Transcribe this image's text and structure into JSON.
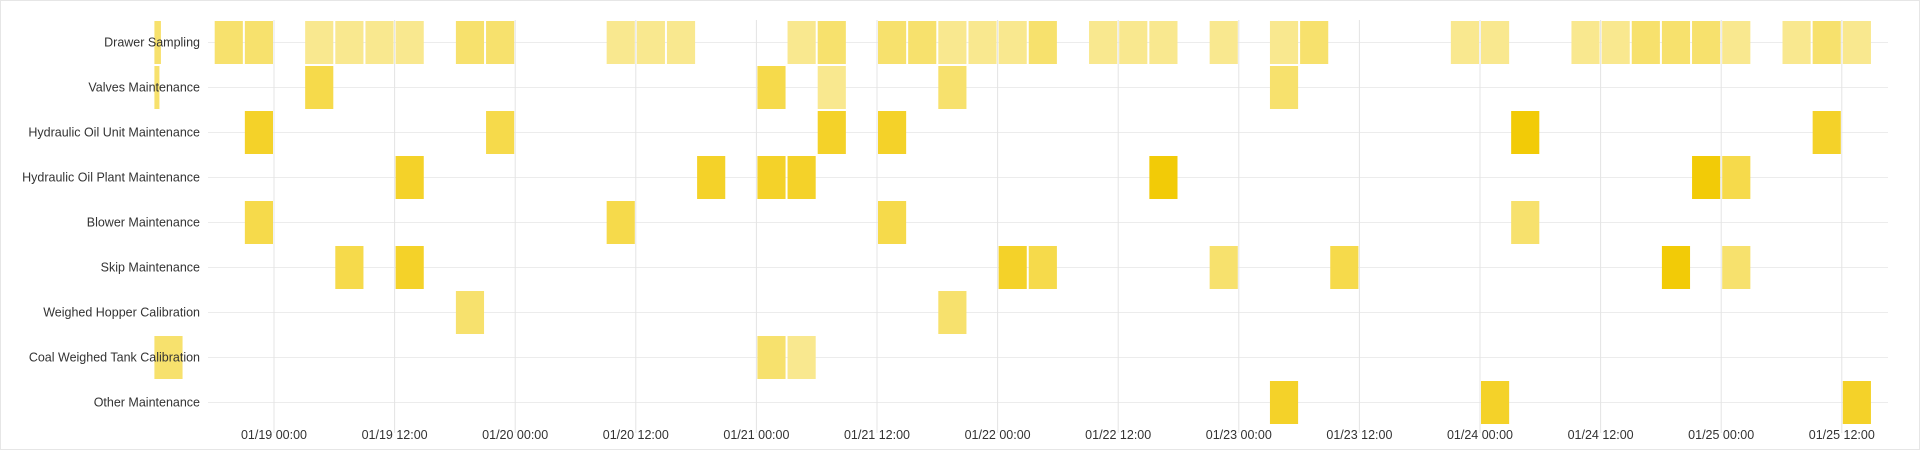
{
  "chart_data": {
    "type": "heatmap",
    "title": "",
    "xlabel": "",
    "ylabel": "",
    "bucket_hours": 3,
    "x_range": [
      "01/18 12:00",
      "01/25 18:00"
    ],
    "grid": true,
    "legend": "none",
    "color_scale": [
      "#f9e88f",
      "#f2cb07"
    ],
    "value_range": [
      1,
      5
    ],
    "rows": [
      "Drawer Sampling",
      "Valves Maintenance",
      "Hydraulic Oil Unit Maintenance",
      "Hydraulic Oil Plant Maintenance",
      "Blower Maintenance",
      "Skip Maintenance",
      "Weighed Hopper Calibration",
      "Coal Weighed Tank Calibration",
      "Other Maintenance"
    ],
    "x_ticks": [
      "01/19 00:00",
      "01/19 12:00",
      "01/20 00:00",
      "01/20 12:00",
      "01/21 00:00",
      "01/21 12:00",
      "01/22 00:00",
      "01/22 12:00",
      "01/23 00:00",
      "01/23 12:00",
      "01/24 00:00",
      "01/24 12:00",
      "01/25 00:00",
      "01/25 12:00"
    ],
    "cells": [
      {
        "row": "Drawer Sampling",
        "start": "01/18 18:00",
        "value": 2
      },
      {
        "row": "Drawer Sampling",
        "start": "01/18 21:00",
        "value": 2
      },
      {
        "row": "Drawer Sampling",
        "start": "01/19 03:00",
        "value": 1
      },
      {
        "row": "Drawer Sampling",
        "start": "01/19 06:00",
        "value": 1
      },
      {
        "row": "Drawer Sampling",
        "start": "01/19 09:00",
        "value": 1
      },
      {
        "row": "Drawer Sampling",
        "start": "01/19 12:00",
        "value": 1
      },
      {
        "row": "Drawer Sampling",
        "start": "01/19 18:00",
        "value": 2
      },
      {
        "row": "Drawer Sampling",
        "start": "01/19 21:00",
        "value": 2
      },
      {
        "row": "Drawer Sampling",
        "start": "01/20 09:00",
        "value": 1
      },
      {
        "row": "Drawer Sampling",
        "start": "01/20 12:00",
        "value": 1
      },
      {
        "row": "Drawer Sampling",
        "start": "01/20 15:00",
        "value": 1
      },
      {
        "row": "Drawer Sampling",
        "start": "01/21 03:00",
        "value": 1
      },
      {
        "row": "Drawer Sampling",
        "start": "01/21 06:00",
        "value": 2
      },
      {
        "row": "Drawer Sampling",
        "start": "01/21 12:00",
        "value": 2
      },
      {
        "row": "Drawer Sampling",
        "start": "01/21 15:00",
        "value": 2
      },
      {
        "row": "Drawer Sampling",
        "start": "01/21 18:00",
        "value": 1
      },
      {
        "row": "Drawer Sampling",
        "start": "01/21 21:00",
        "value": 1
      },
      {
        "row": "Drawer Sampling",
        "start": "01/22 00:00",
        "value": 1
      },
      {
        "row": "Drawer Sampling",
        "start": "01/22 03:00",
        "value": 2
      },
      {
        "row": "Drawer Sampling",
        "start": "01/22 09:00",
        "value": 1
      },
      {
        "row": "Drawer Sampling",
        "start": "01/22 12:00",
        "value": 1
      },
      {
        "row": "Drawer Sampling",
        "start": "01/22 15:00",
        "value": 1
      },
      {
        "row": "Drawer Sampling",
        "start": "01/22 21:00",
        "value": 1
      },
      {
        "row": "Drawer Sampling",
        "start": "01/23 03:00",
        "value": 1
      },
      {
        "row": "Drawer Sampling",
        "start": "01/23 06:00",
        "value": 2
      },
      {
        "row": "Drawer Sampling",
        "start": "01/23 21:00",
        "value": 1
      },
      {
        "row": "Drawer Sampling",
        "start": "01/24 00:00",
        "value": 1
      },
      {
        "row": "Drawer Sampling",
        "start": "01/24 09:00",
        "value": 1
      },
      {
        "row": "Drawer Sampling",
        "start": "01/24 12:00",
        "value": 1
      },
      {
        "row": "Drawer Sampling",
        "start": "01/24 15:00",
        "value": 2
      },
      {
        "row": "Drawer Sampling",
        "start": "01/24 18:00",
        "value": 2
      },
      {
        "row": "Drawer Sampling",
        "start": "01/24 21:00",
        "value": 2
      },
      {
        "row": "Drawer Sampling",
        "start": "01/25 00:00",
        "value": 1
      },
      {
        "row": "Drawer Sampling",
        "start": "01/25 06:00",
        "value": 1
      },
      {
        "row": "Drawer Sampling",
        "start": "01/25 09:00",
        "value": 2
      },
      {
        "row": "Drawer Sampling",
        "start": "01/25 12:00",
        "value": 1
      },
      {
        "row": "Valves Maintenance",
        "start": "01/19 03:00",
        "value": 3
      },
      {
        "row": "Valves Maintenance",
        "start": "01/21 00:00",
        "value": 3
      },
      {
        "row": "Valves Maintenance",
        "start": "01/21 06:00",
        "value": 1
      },
      {
        "row": "Valves Maintenance",
        "start": "01/21 18:00",
        "value": 2
      },
      {
        "row": "Valves Maintenance",
        "start": "01/23 03:00",
        "value": 2
      },
      {
        "row": "Hydraulic Oil Unit Maintenance",
        "start": "01/18 21:00",
        "value": 4
      },
      {
        "row": "Hydraulic Oil Unit Maintenance",
        "start": "01/19 21:00",
        "value": 3
      },
      {
        "row": "Hydraulic Oil Unit Maintenance",
        "start": "01/21 06:00",
        "value": 4
      },
      {
        "row": "Hydraulic Oil Unit Maintenance",
        "start": "01/21 12:00",
        "value": 4
      },
      {
        "row": "Hydraulic Oil Unit Maintenance",
        "start": "01/24 03:00",
        "value": 5
      },
      {
        "row": "Hydraulic Oil Unit Maintenance",
        "start": "01/25 09:00",
        "value": 4
      },
      {
        "row": "Hydraulic Oil Plant Maintenance",
        "start": "01/19 12:00",
        "value": 4
      },
      {
        "row": "Hydraulic Oil Plant Maintenance",
        "start": "01/20 18:00",
        "value": 4
      },
      {
        "row": "Hydraulic Oil Plant Maintenance",
        "start": "01/21 00:00",
        "value": 4
      },
      {
        "row": "Hydraulic Oil Plant Maintenance",
        "start": "01/21 03:00",
        "value": 4
      },
      {
        "row": "Hydraulic Oil Plant Maintenance",
        "start": "01/22 15:00",
        "value": 5
      },
      {
        "row": "Hydraulic Oil Plant Maintenance",
        "start": "01/24 21:00",
        "value": 5
      },
      {
        "row": "Hydraulic Oil Plant Maintenance",
        "start": "01/25 00:00",
        "value": 3
      },
      {
        "row": "Blower Maintenance",
        "start": "01/18 21:00",
        "value": 3
      },
      {
        "row": "Blower Maintenance",
        "start": "01/20 09:00",
        "value": 3
      },
      {
        "row": "Blower Maintenance",
        "start": "01/21 12:00",
        "value": 3
      },
      {
        "row": "Blower Maintenance",
        "start": "01/24 03:00",
        "value": 2
      },
      {
        "row": "Skip Maintenance",
        "start": "01/19 06:00",
        "value": 3
      },
      {
        "row": "Skip Maintenance",
        "start": "01/19 12:00",
        "value": 4
      },
      {
        "row": "Skip Maintenance",
        "start": "01/22 00:00",
        "value": 4
      },
      {
        "row": "Skip Maintenance",
        "start": "01/22 03:00",
        "value": 3
      },
      {
        "row": "Skip Maintenance",
        "start": "01/22 21:00",
        "value": 2
      },
      {
        "row": "Skip Maintenance",
        "start": "01/23 09:00",
        "value": 3
      },
      {
        "row": "Skip Maintenance",
        "start": "01/24 18:00",
        "value": 5
      },
      {
        "row": "Skip Maintenance",
        "start": "01/25 00:00",
        "value": 2
      },
      {
        "row": "Weighed Hopper Calibration",
        "start": "01/19 18:00",
        "value": 2
      },
      {
        "row": "Weighed Hopper Calibration",
        "start": "01/21 18:00",
        "value": 2
      },
      {
        "row": "Coal Weighed Tank Calibration",
        "start": "01/18 12:00",
        "value": 2
      },
      {
        "row": "Coal Weighed Tank Calibration",
        "start": "01/21 00:00",
        "value": 2
      },
      {
        "row": "Coal Weighed Tank Calibration",
        "start": "01/21 03:00",
        "value": 1
      },
      {
        "row": "Other Maintenance",
        "start": "01/23 03:00",
        "value": 4
      },
      {
        "row": "Other Maintenance",
        "start": "01/24 00:00",
        "value": 4
      },
      {
        "row": "Other Maintenance",
        "start": "01/25 12:00",
        "value": 4
      }
    ],
    "partial_cells": [
      {
        "row": "Drawer Sampling",
        "start": "01/18 12:00",
        "hours": 0.75,
        "value": 2
      },
      {
        "row": "Valves Maintenance",
        "start": "01/18 12:00",
        "hours": 0.6,
        "value": 2
      }
    ]
  }
}
